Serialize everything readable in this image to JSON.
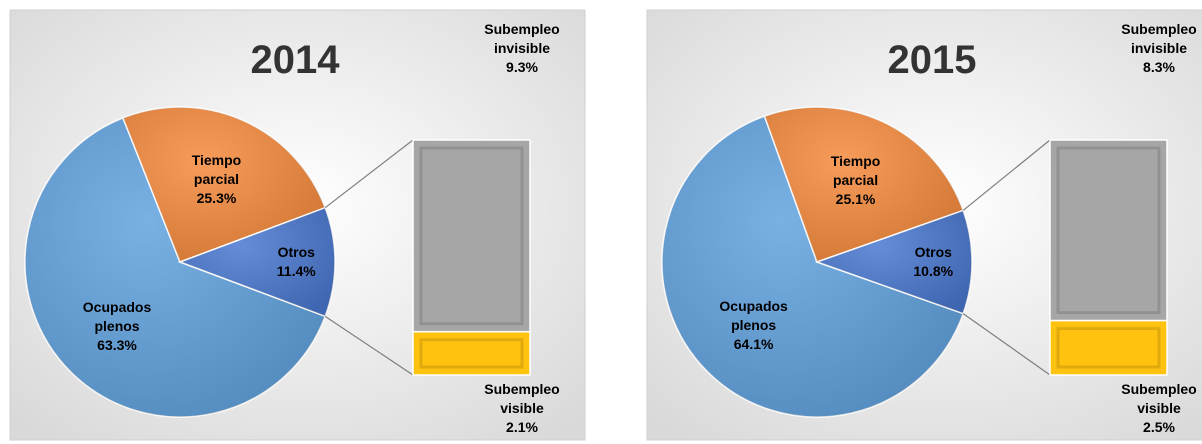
{
  "chart_data": [
    {
      "type": "bar-of-pie",
      "title": "2014",
      "categories": [
        "Ocupados plenos",
        "Tiempo parcial",
        "Otros"
      ],
      "values": [
        63.3,
        25.3,
        11.4
      ],
      "value_labels": [
        "63.3%",
        "25.3%",
        "11.4%"
      ],
      "colors": [
        "#62a3e0",
        "#f58a3c",
        "#4a78d0"
      ],
      "breakdown": {
        "categories": [
          "Subempleo invisible",
          "Subempleo visible"
        ],
        "values": [
          9.3,
          2.1
        ],
        "value_labels": [
          "9.3%",
          "2.1%"
        ],
        "colors": [
          "#a6a6a6",
          "#ffc20e"
        ]
      }
    },
    {
      "type": "bar-of-pie",
      "title": "2015",
      "categories": [
        "Ocupados plenos",
        "Tiempo parcial",
        "Otros"
      ],
      "values": [
        64.1,
        25.1,
        10.8
      ],
      "value_labels": [
        "64.1%",
        "25.1%",
        "10.8%"
      ],
      "colors": [
        "#62a3e0",
        "#f58a3c",
        "#4a78d0"
      ],
      "breakdown": {
        "categories": [
          "Subempleo invisible",
          "Subempleo visible"
        ],
        "values": [
          8.3,
          2.5
        ],
        "value_labels": [
          "8.3%",
          "2.5%"
        ],
        "colors": [
          "#a6a6a6",
          "#ffc20e"
        ]
      }
    }
  ]
}
